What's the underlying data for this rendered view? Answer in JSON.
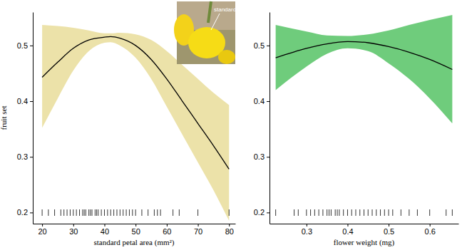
{
  "chart_data": [
    {
      "type": "line",
      "xlabel": "standard petal area (mm²)",
      "ylabel": "fruit set",
      "annotation": "standard",
      "x": [
        20,
        25,
        30,
        35,
        40,
        42,
        45,
        50,
        55,
        60,
        65,
        70,
        75,
        80
      ],
      "values": [
        0.443,
        0.47,
        0.495,
        0.51,
        0.515,
        0.516,
        0.513,
        0.5,
        0.475,
        0.44,
        0.4,
        0.36,
        0.32,
        0.278
      ],
      "upper": [
        0.537,
        0.535,
        0.532,
        0.527,
        0.522,
        0.522,
        0.523,
        0.52,
        0.51,
        0.49,
        0.465,
        0.44,
        0.415,
        0.393
      ],
      "lower": [
        0.352,
        0.405,
        0.455,
        0.49,
        0.505,
        0.506,
        0.5,
        0.478,
        0.44,
        0.39,
        0.34,
        0.29,
        0.24,
        0.185
      ],
      "rug": [
        20,
        22,
        24,
        26,
        27,
        28,
        29,
        30,
        31,
        32,
        33,
        33.5,
        34,
        35,
        35.5,
        36,
        37,
        37.5,
        38,
        39,
        40,
        41,
        42,
        43,
        44,
        45,
        46,
        47,
        48,
        49,
        50,
        52,
        54,
        56,
        57,
        58,
        62,
        64,
        70,
        80
      ],
      "color": "#ece2a9",
      "xlim": [
        17,
        82
      ],
      "ylim": [
        0.18,
        0.56
      ],
      "xticks": [
        20,
        30,
        40,
        50,
        60,
        70,
        80
      ],
      "yticks": [
        0.2,
        0.3,
        0.4,
        0.5
      ]
    },
    {
      "type": "line",
      "xlabel": "flower weight (mg)",
      "x": [
        0.225,
        0.3,
        0.35,
        0.4,
        0.45,
        0.5,
        0.55,
        0.6,
        0.655
      ],
      "values": [
        0.478,
        0.495,
        0.503,
        0.507,
        0.505,
        0.498,
        0.488,
        0.475,
        0.457
      ],
      "upper": [
        0.537,
        0.525,
        0.518,
        0.517,
        0.52,
        0.527,
        0.537,
        0.546,
        0.555
      ],
      "lower": [
        0.42,
        0.462,
        0.485,
        0.495,
        0.49,
        0.468,
        0.44,
        0.405,
        0.36
      ],
      "rug": [
        0.225,
        0.27,
        0.28,
        0.3,
        0.31,
        0.32,
        0.33,
        0.34,
        0.35,
        0.355,
        0.36,
        0.37,
        0.375,
        0.38,
        0.39,
        0.4,
        0.41,
        0.42,
        0.43,
        0.44,
        0.45,
        0.46,
        0.47,
        0.48,
        0.49,
        0.5,
        0.51,
        0.53,
        0.55,
        0.57,
        0.6,
        0.64,
        0.655
      ],
      "color": "#6fcc7c",
      "xlim": [
        0.21,
        0.67
      ],
      "ylim": [
        0.18,
        0.56
      ],
      "xticks": [
        0.3,
        0.4,
        0.5,
        0.6
      ],
      "yticks": [
        0.2,
        0.3,
        0.4,
        0.5
      ]
    }
  ]
}
